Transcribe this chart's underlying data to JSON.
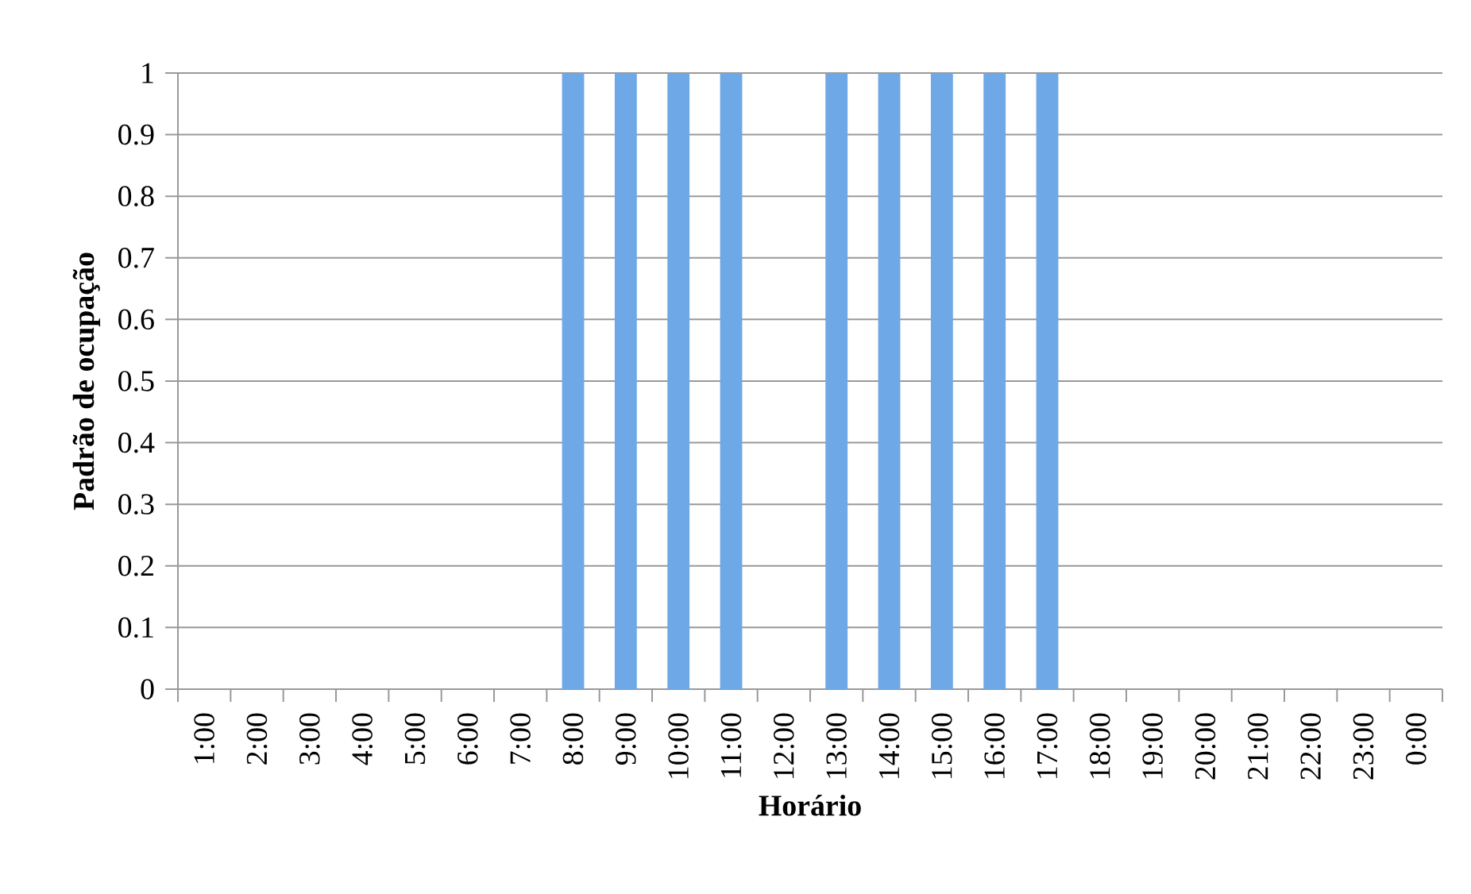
{
  "chart_data": {
    "type": "bar",
    "xlabel": "Horário",
    "ylabel": "Padrão de ocupação",
    "categories": [
      "1:00",
      "2:00",
      "3:00",
      "4:00",
      "5:00",
      "6:00",
      "7:00",
      "8:00",
      "9:00",
      "10:00",
      "11:00",
      "12:00",
      "13:00",
      "14:00",
      "15:00",
      "16:00",
      "17:00",
      "18:00",
      "19:00",
      "20:00",
      "21:00",
      "22:00",
      "23:00",
      "0:00"
    ],
    "values": [
      0,
      0,
      0,
      0,
      0,
      0,
      0,
      1,
      1,
      1,
      1,
      0,
      1,
      1,
      1,
      1,
      1,
      0,
      0,
      0,
      0,
      0,
      0,
      0
    ],
    "color": "#6fa8e6",
    "ylim": [
      0,
      1
    ],
    "yticks": [
      0,
      0.1,
      0.2,
      0.3,
      0.4,
      0.5,
      0.6,
      0.7,
      0.8,
      0.9,
      1
    ],
    "grid": "y"
  }
}
